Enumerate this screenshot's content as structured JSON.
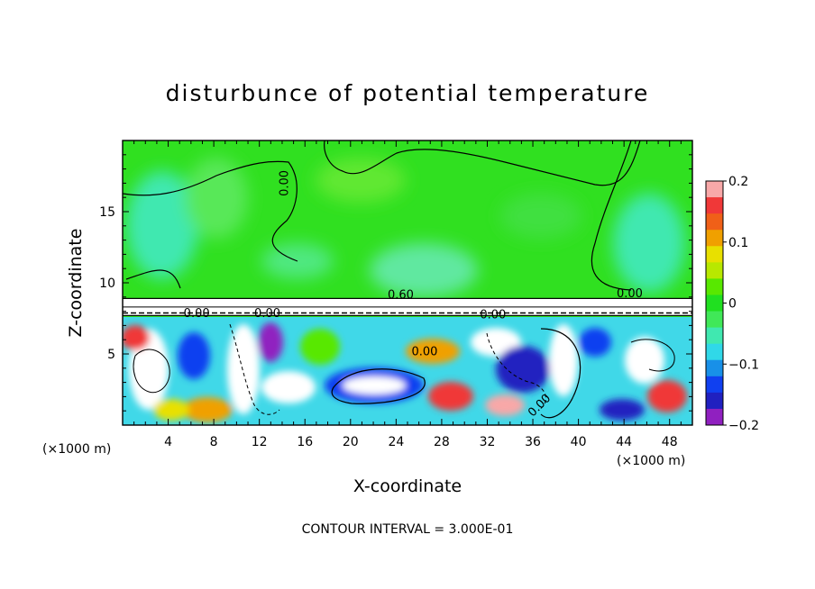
{
  "chart_data": {
    "type": "heatmap",
    "title": "disturbunce of potential temperature",
    "xlabel": "X-coordinate",
    "ylabel": "Z-coordinate",
    "x_unit_label": "(×1000 m)",
    "y_unit_label": "(×1000 m)",
    "x_ticks": [
      4,
      8,
      12,
      16,
      20,
      24,
      28,
      32,
      36,
      40,
      44,
      48
    ],
    "y_ticks": [
      5,
      10,
      15
    ],
    "xlim": [
      0,
      50
    ],
    "ylim": [
      0,
      20
    ],
    "colorbar": {
      "min": -0.2,
      "max": 0.2,
      "tick_values": [
        0.2,
        0.1,
        0,
        -0.1,
        -0.2
      ],
      "tick_labels": [
        "0.2",
        "0.1",
        "0",
        "−0.1",
        "−0.2"
      ],
      "colors": [
        "#f8a8a8",
        "#f03838",
        "#f06018",
        "#f0a000",
        "#e8e000",
        "#b8e800",
        "#58e800",
        "#20e020",
        "#40e858",
        "#40e8b0",
        "#30d8e8",
        "#1890e8",
        "#1040f0",
        "#2020c0",
        "#9020c0"
      ]
    },
    "contour_interval_label": "CONTOUR INTERVAL = 3.000E-01",
    "contour_labels": [
      {
        "text": "0.00",
        "x": 14.5,
        "y": 17.0,
        "rot": -90
      },
      {
        "text": "0.60",
        "x": 24.4,
        "y": 8.9,
        "rot": 0
      },
      {
        "text": "0.00",
        "x": 6.5,
        "y": 7.6,
        "rot": 0
      },
      {
        "text": "0.00",
        "x": 12.7,
        "y": 7.6,
        "rot": 0
      },
      {
        "text": "0.00",
        "x": 32.5,
        "y": 7.5,
        "rot": 0
      },
      {
        "text": "0.00",
        "x": 44.5,
        "y": 9.0,
        "rot": 0
      },
      {
        "text": "0.00",
        "x": 26.5,
        "y": 4.9,
        "rot": 0
      },
      {
        "text": "0.00",
        "x": 36.8,
        "y": 1.2,
        "rot": -45
      }
    ],
    "band_layer": {
      "z_bottom": 7.7,
      "z_top": 8.9
    },
    "grid": false
  }
}
